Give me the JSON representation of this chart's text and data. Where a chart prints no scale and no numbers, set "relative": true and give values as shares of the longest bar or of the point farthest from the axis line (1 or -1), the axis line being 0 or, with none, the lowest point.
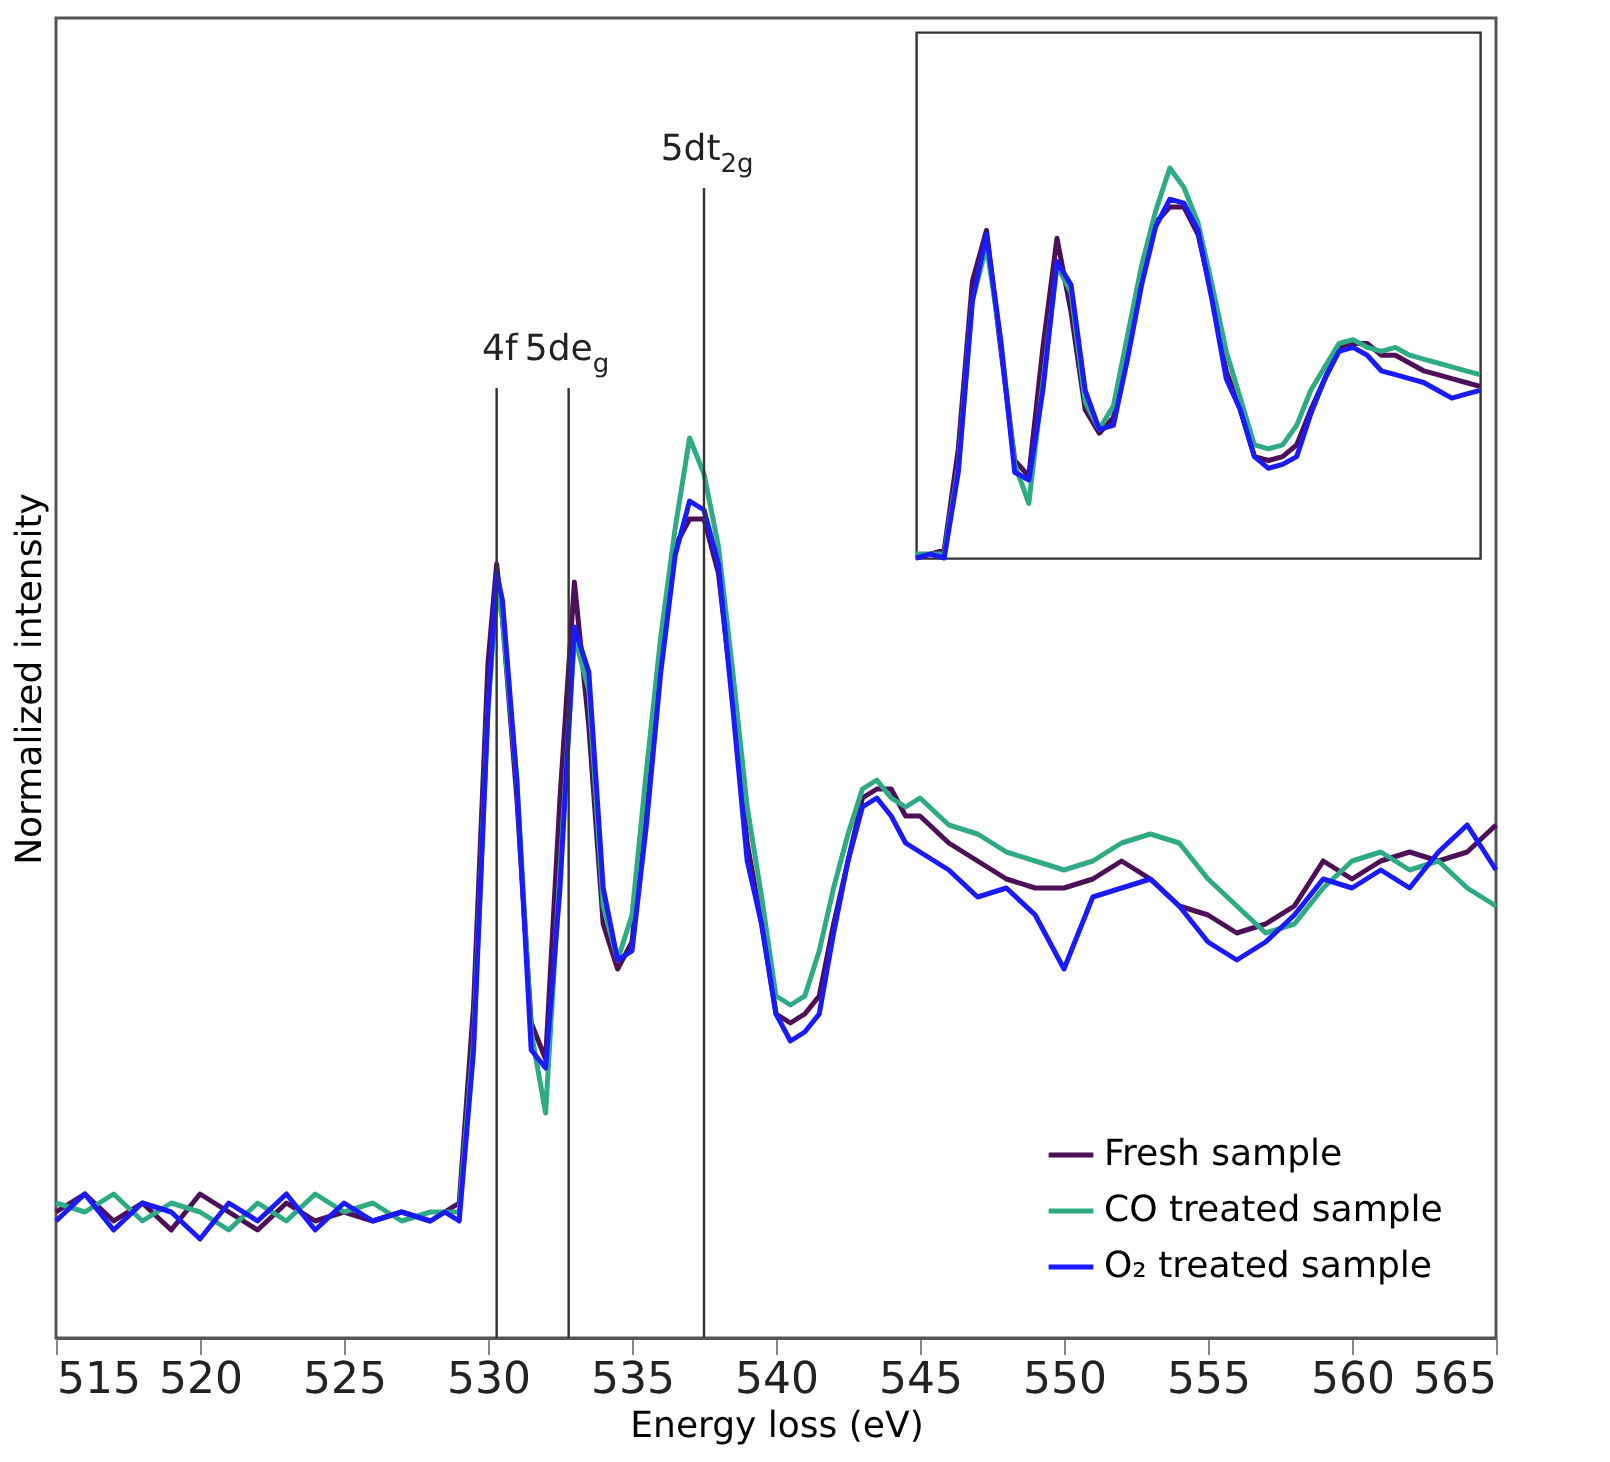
{
  "chart_data": [
    {
      "type": "line",
      "relative": true,
      "xlabel": "Energy loss (eV)",
      "ylabel": "Normalized intensity",
      "x": [
        515,
        516,
        517,
        518,
        519,
        520,
        521,
        522,
        523,
        524,
        525,
        526,
        527,
        528,
        528.5,
        529,
        529.5,
        530,
        530.3,
        530.5,
        531,
        531.5,
        532,
        532.5,
        533,
        533.5,
        534,
        534.5,
        535,
        535.5,
        536,
        536.5,
        537,
        537.5,
        538,
        538.5,
        539,
        539.5,
        540,
        540.5,
        541,
        541.5,
        542,
        542.5,
        543,
        543.5,
        544,
        544.5,
        545,
        546,
        547,
        548,
        549,
        550,
        551,
        552,
        553,
        554,
        555,
        556,
        557,
        558,
        559,
        560,
        561,
        562,
        563,
        564,
        565
      ],
      "series": [
        {
          "name": "Fresh sample",
          "color": "#4d0f57",
          "values": [
            0.14,
            0.16,
            0.13,
            0.15,
            0.12,
            0.16,
            0.14,
            0.12,
            0.15,
            0.13,
            0.14,
            0.13,
            0.14,
            0.13,
            0.14,
            0.15,
            0.37,
            0.75,
            0.86,
            0.8,
            0.6,
            0.35,
            0.31,
            0.6,
            0.84,
            0.68,
            0.46,
            0.41,
            0.44,
            0.6,
            0.75,
            0.88,
            0.91,
            0.91,
            0.85,
            0.71,
            0.55,
            0.46,
            0.36,
            0.35,
            0.36,
            0.38,
            0.46,
            0.53,
            0.6,
            0.61,
            0.61,
            0.58,
            0.58,
            0.55,
            0.53,
            0.51,
            0.5,
            0.5,
            0.51,
            0.53,
            0.51,
            0.48,
            0.47,
            0.45,
            0.46,
            0.48,
            0.53,
            0.51,
            0.53,
            0.54,
            0.53,
            0.54,
            0.57
          ]
        },
        {
          "name": "CO treated sample",
          "color": "#2eab85",
          "values": [
            0.15,
            0.14,
            0.16,
            0.13,
            0.15,
            0.14,
            0.12,
            0.15,
            0.13,
            0.16,
            0.14,
            0.15,
            0.13,
            0.14,
            0.14,
            0.14,
            0.33,
            0.7,
            0.83,
            0.8,
            0.62,
            0.34,
            0.25,
            0.52,
            0.78,
            0.72,
            0.48,
            0.42,
            0.47,
            0.63,
            0.78,
            0.9,
            1.0,
            0.96,
            0.88,
            0.74,
            0.59,
            0.49,
            0.38,
            0.37,
            0.38,
            0.43,
            0.5,
            0.56,
            0.61,
            0.62,
            0.6,
            0.59,
            0.6,
            0.57,
            0.56,
            0.54,
            0.53,
            0.52,
            0.53,
            0.55,
            0.56,
            0.55,
            0.51,
            0.48,
            0.45,
            0.46,
            0.5,
            0.53,
            0.54,
            0.52,
            0.53,
            0.5,
            0.48
          ]
        },
        {
          "name": "O₂ treated sample",
          "color": "#1a1aff",
          "values": [
            0.13,
            0.16,
            0.12,
            0.15,
            0.14,
            0.11,
            0.15,
            0.13,
            0.16,
            0.12,
            0.15,
            0.13,
            0.14,
            0.13,
            0.14,
            0.13,
            0.32,
            0.7,
            0.85,
            0.82,
            0.62,
            0.32,
            0.3,
            0.5,
            0.79,
            0.74,
            0.5,
            0.42,
            0.43,
            0.57,
            0.74,
            0.87,
            0.93,
            0.92,
            0.86,
            0.7,
            0.53,
            0.46,
            0.36,
            0.33,
            0.34,
            0.36,
            0.45,
            0.53,
            0.59,
            0.6,
            0.58,
            0.55,
            0.54,
            0.52,
            0.49,
            0.5,
            0.47,
            0.41,
            0.49,
            0.5,
            0.51,
            0.48,
            0.44,
            0.42,
            0.44,
            0.47,
            0.51,
            0.5,
            0.52,
            0.5,
            0.54,
            0.57,
            0.52
          ]
        }
      ],
      "xlim": [
        515,
        565
      ],
      "xticks": [
        515,
        520,
        525,
        530,
        535,
        540,
        545,
        550,
        555,
        560,
        565
      ],
      "ref_lines": [
        {
          "axis": "x",
          "value": 530.3,
          "label": "4f"
        },
        {
          "axis": "x",
          "value": 532.8,
          "label": "5de$_{g}$"
        },
        {
          "axis": "x",
          "value": 537.5,
          "label": "5dt$_{2g}$"
        }
      ],
      "legend": "bottom right",
      "grid": false,
      "marker": "none",
      "line_style": "solid"
    },
    {
      "type": "line",
      "relative": true,
      "tick_labels": false,
      "categories": [
        null,
        null,
        null,
        null,
        null,
        null,
        null,
        null,
        null,
        null,
        null,
        null,
        null,
        null,
        null,
        null,
        null,
        null,
        null,
        null,
        null,
        null,
        null,
        null,
        null,
        null,
        null,
        null,
        null,
        null,
        null,
        null,
        null,
        null,
        null,
        null,
        null,
        null,
        null,
        null,
        null
      ],
      "series": [
        {
          "color": "#4d0f57",
          "values": [
            0,
            0.01,
            0.02,
            0.28,
            0.71,
            0.84,
            0.54,
            0.25,
            0.21,
            0.54,
            0.82,
            0.63,
            0.38,
            0.32,
            0.36,
            0.54,
            0.71,
            0.86,
            0.9,
            0.9,
            0.83,
            0.67,
            0.48,
            0.38,
            0.26,
            0.25,
            0.26,
            0.29,
            0.38,
            0.46,
            0.54,
            0.55,
            0.55,
            0.52,
            0.52,
            0.5,
            0.48,
            0.47,
            0.46,
            0.45,
            0.44
          ]
        },
        {
          "color": "#2eab85",
          "values": [
            0.01,
            0.01,
            0.01,
            0.23,
            0.66,
            0.8,
            0.56,
            0.24,
            0.14,
            0.45,
            0.75,
            0.68,
            0.4,
            0.33,
            0.39,
            0.57,
            0.75,
            0.89,
            1,
            0.95,
            0.86,
            0.7,
            0.53,
            0.41,
            0.29,
            0.28,
            0.29,
            0.34,
            0.43,
            0.49,
            0.55,
            0.56,
            0.54,
            0.53,
            0.54,
            0.52,
            0.51,
            0.5,
            0.49,
            0.48,
            0.47
          ]
        },
        {
          "color": "#1a1aff",
          "values": [
            0,
            0.01,
            0,
            0.22,
            0.66,
            0.83,
            0.56,
            0.22,
            0.2,
            0.43,
            0.76,
            0.7,
            0.43,
            0.33,
            0.34,
            0.51,
            0.7,
            0.85,
            0.92,
            0.91,
            0.84,
            0.66,
            0.46,
            0.38,
            0.26,
            0.23,
            0.24,
            0.26,
            0.37,
            0.46,
            0.53,
            0.54,
            0.52,
            0.48,
            0.47,
            0.46,
            0.45,
            0.43,
            0.41,
            0.42,
            0.43
          ]
        }
      ],
      "grid": false,
      "legend": false,
      "marker": "none",
      "line_style": "solid"
    }
  ]
}
